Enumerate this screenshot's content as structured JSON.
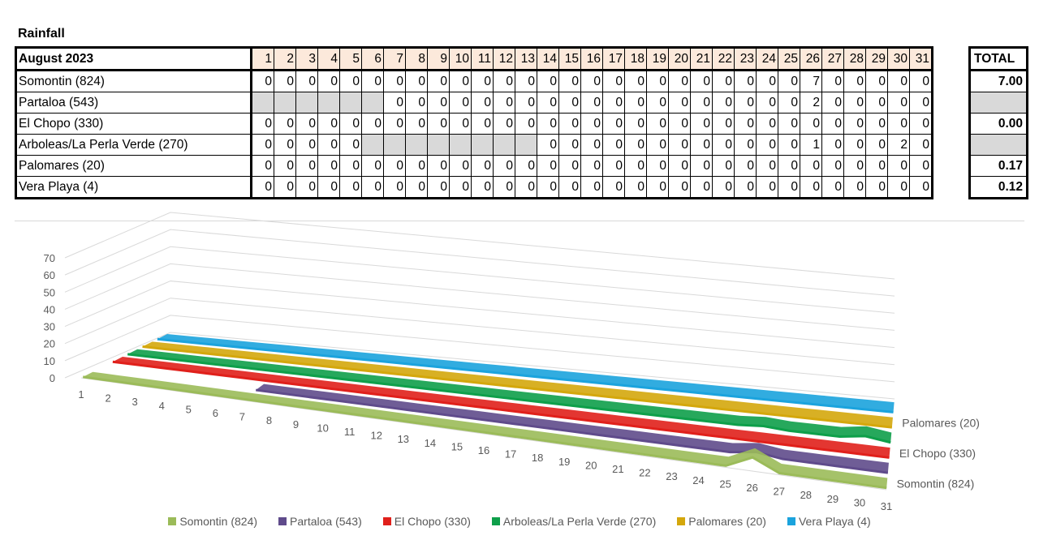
{
  "title": "Rainfall",
  "table": {
    "month_label": "August 2023",
    "days": [
      "1",
      "2",
      "3",
      "4",
      "5",
      "6",
      "7",
      "8",
      "9",
      "10",
      "11",
      "12",
      "13",
      "14",
      "15",
      "16",
      "17",
      "18",
      "19",
      "20",
      "21",
      "22",
      "23",
      "24",
      "25",
      "26",
      "27",
      "28",
      "29",
      "30",
      "31"
    ],
    "total_header": "TOTAL",
    "rows": [
      {
        "name": "Somontin (824)",
        "values": [
          "0",
          "0",
          "0",
          "0",
          "0",
          "0",
          "0",
          "0",
          "0",
          "0",
          "0",
          "0",
          "0",
          "0",
          "0",
          "0",
          "0",
          "0",
          "0",
          "0",
          "0",
          "0",
          "0",
          "0",
          "0",
          "7",
          "0",
          "0",
          "0",
          "0",
          "0"
        ],
        "total": "7.00"
      },
      {
        "name": "Partaloa (543)",
        "values": [
          "",
          "",
          "",
          "",
          "",
          "",
          "0",
          "0",
          "0",
          "0",
          "0",
          "0",
          "0",
          "0",
          "0",
          "0",
          "0",
          "0",
          "0",
          "0",
          "0",
          "0",
          "0",
          "0",
          "0",
          "2",
          "0",
          "0",
          "0",
          "0",
          "0"
        ],
        "total": ""
      },
      {
        "name": "El Chopo (330)",
        "values": [
          "0",
          "0",
          "0",
          "0",
          "0",
          "0",
          "0",
          "0",
          "0",
          "0",
          "0",
          "0",
          "0",
          "0",
          "0",
          "0",
          "0",
          "0",
          "0",
          "0",
          "0",
          "0",
          "0",
          "0",
          "0",
          "0",
          "0",
          "0",
          "0",
          "0",
          "0"
        ],
        "total": "0.00"
      },
      {
        "name": "Arboleas/La Perla Verde (270)",
        "values": [
          "0",
          "0",
          "0",
          "0",
          "0",
          "",
          "",
          "",
          "",
          "",
          "",
          "",
          "",
          "0",
          "0",
          "0",
          "0",
          "0",
          "0",
          "0",
          "0",
          "0",
          "0",
          "0",
          "0",
          "1",
          "0",
          "0",
          "0",
          "2",
          "0"
        ],
        "total": ""
      },
      {
        "name": "Palomares (20)",
        "values": [
          "0",
          "0",
          "0",
          "0",
          "0",
          "0",
          "0",
          "0",
          "0",
          "0",
          "0",
          "0",
          "0",
          "0",
          "0",
          "0",
          "0",
          "0",
          "0",
          "0",
          "0",
          "0",
          "0",
          "0",
          "0",
          "0",
          "0",
          "0",
          "0",
          "0",
          "0"
        ],
        "total": "0.17"
      },
      {
        "name": "Vera Playa (4)",
        "values": [
          "0",
          "0",
          "0",
          "0",
          "0",
          "0",
          "0",
          "0",
          "0",
          "0",
          "0",
          "0",
          "0",
          "0",
          "0",
          "0",
          "0",
          "0",
          "0",
          "0",
          "0",
          "0",
          "0",
          "0",
          "0",
          "0",
          "0",
          "0",
          "0",
          "0",
          "0"
        ],
        "total": "0.12"
      }
    ]
  },
  "chart_data": {
    "type": "area",
    "x": [
      "1",
      "2",
      "3",
      "4",
      "5",
      "6",
      "7",
      "8",
      "9",
      "10",
      "11",
      "12",
      "13",
      "14",
      "15",
      "16",
      "17",
      "18",
      "19",
      "20",
      "21",
      "22",
      "23",
      "24",
      "25",
      "26",
      "27",
      "28",
      "29",
      "30",
      "31"
    ],
    "ylim": [
      0,
      70
    ],
    "yticks": [
      "0",
      "10",
      "20",
      "30",
      "40",
      "50",
      "60",
      "70"
    ],
    "depth_labels": [
      "Somontin (824)",
      "El Chopo (330)",
      "Palomares (20)"
    ],
    "series": [
      {
        "name": "Somontin (824)",
        "color": "#9bbb59",
        "values": [
          0,
          0,
          0,
          0,
          0,
          0,
          0,
          0,
          0,
          0,
          0,
          0,
          0,
          0,
          0,
          0,
          0,
          0,
          0,
          0,
          0,
          0,
          0,
          0,
          0,
          7,
          0,
          0,
          0,
          0,
          0
        ]
      },
      {
        "name": "Partaloa (543)",
        "color": "#5f4b8b",
        "values": [
          null,
          null,
          null,
          null,
          null,
          null,
          0,
          0,
          0,
          0,
          0,
          0,
          0,
          0,
          0,
          0,
          0,
          0,
          0,
          0,
          0,
          0,
          0,
          0,
          0,
          2,
          0,
          0,
          0,
          0,
          0
        ]
      },
      {
        "name": "El Chopo (330)",
        "color": "#e0201b",
        "values": [
          0,
          0,
          0,
          0,
          0,
          0,
          0,
          0,
          0,
          0,
          0,
          0,
          0,
          0,
          0,
          0,
          0,
          0,
          0,
          0,
          0,
          0,
          0,
          0,
          0,
          0,
          0,
          0,
          0,
          0,
          0
        ]
      },
      {
        "name": "Arboleas/La Perla Verde (270)",
        "color": "#0e9f4a",
        "values": [
          0,
          0,
          0,
          0,
          0,
          null,
          null,
          null,
          null,
          null,
          null,
          null,
          null,
          0,
          0,
          0,
          0,
          0,
          0,
          0,
          0,
          0,
          0,
          0,
          0,
          1,
          0,
          0,
          0,
          2,
          0
        ]
      },
      {
        "name": "Palomares (20)",
        "color": "#d4a70c",
        "values": [
          0,
          0,
          0,
          0,
          0,
          0,
          0,
          0,
          0,
          0,
          0,
          0,
          0,
          0,
          0,
          0,
          0,
          0,
          0,
          0,
          0,
          0,
          0,
          0,
          0,
          0,
          0,
          0,
          0,
          0,
          0
        ]
      },
      {
        "name": "Vera Playa (4)",
        "color": "#1ba3dd",
        "values": [
          0,
          0,
          0,
          0,
          0,
          0,
          0,
          0,
          0,
          0,
          0,
          0,
          0,
          0,
          0,
          0,
          0,
          0,
          0,
          0,
          0,
          0,
          0,
          0,
          0,
          0,
          0,
          0,
          0,
          0,
          0
        ]
      }
    ],
    "legend_position": "bottom",
    "grid": true
  }
}
